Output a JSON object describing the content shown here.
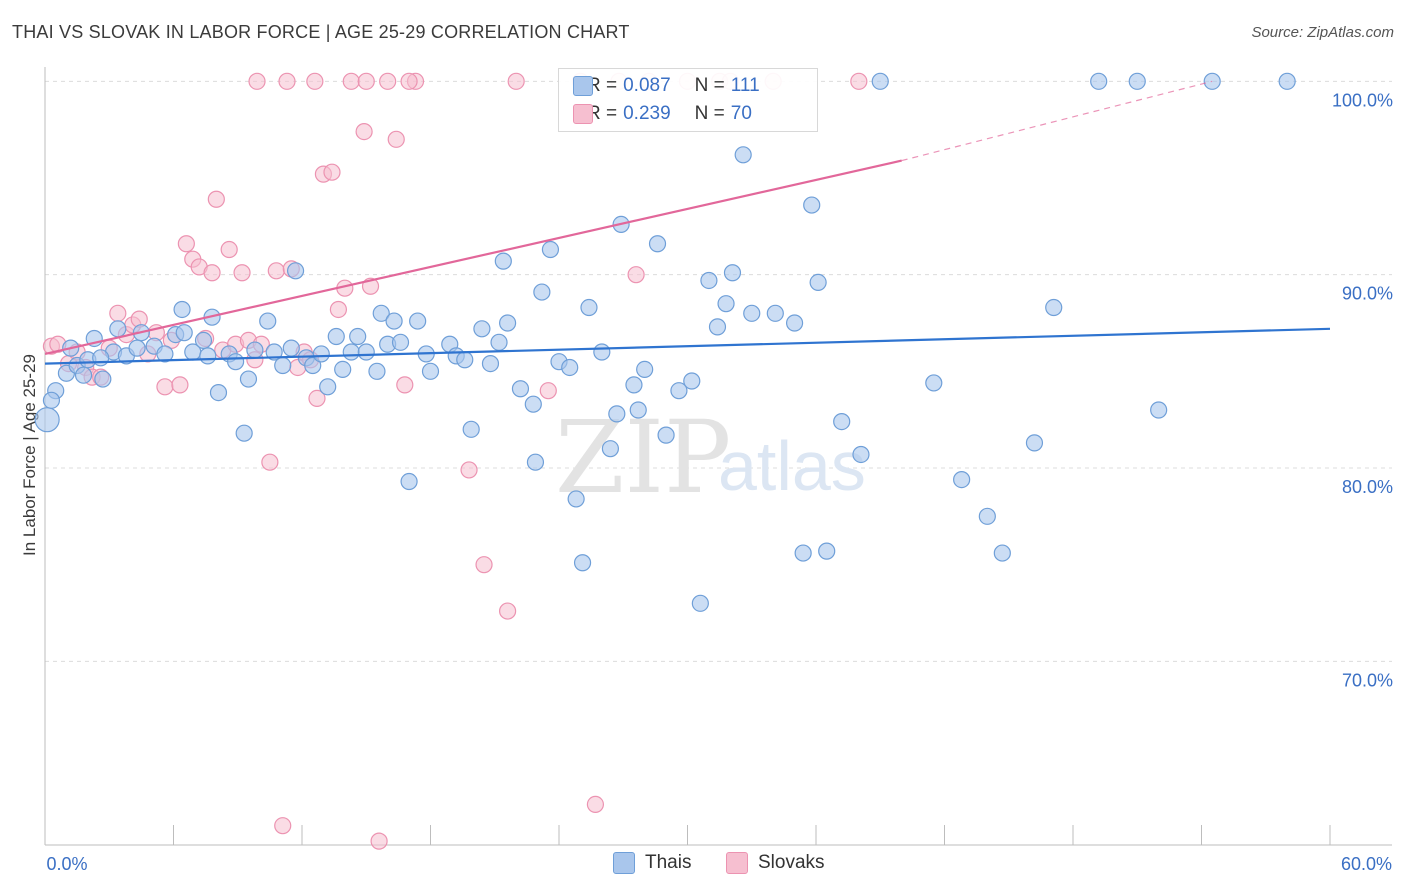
{
  "title": "THAI VS SLOVAK IN LABOR FORCE | AGE 25-29 CORRELATION CHART",
  "source": "Source: ZipAtlas.com",
  "colors": {
    "thai_fill": "#a9c6ec",
    "thai_stroke": "#6f9fd8",
    "thai_line": "#2f74d0",
    "slovak_fill": "#f6bfd0",
    "slovak_stroke": "#ec93b1",
    "slovak_line": "#e2679a",
    "tick_text": "#3a6fc4",
    "grid": "#dcdcdc"
  },
  "legend": {
    "thai": {
      "r_label": "R =",
      "r_value": "0.087",
      "n_label": "N =",
      "n_value": "111"
    },
    "slovak": {
      "r_label": "R =",
      "r_value": "0.239",
      "n_label": "N =",
      "n_value": "70"
    }
  },
  "bottom_legend": {
    "thai": "Thais",
    "slovak": "Slovaks"
  },
  "watermark": {
    "zip": "ZIP",
    "atlas": "atlas"
  },
  "chart_data": {
    "type": "scatter",
    "xlabel": "",
    "ylabel": "In Labor Force | Age 25-29",
    "xlim": [
      0,
      60
    ],
    "ylim": [
      60.5,
      101.0
    ],
    "x_tick_labels": [
      {
        "value": 0,
        "label": "0.0%"
      },
      {
        "value": 60,
        "label": "60.0%"
      }
    ],
    "y_ticks": [
      {
        "value": 70,
        "label": "70.0%"
      },
      {
        "value": 80,
        "label": "80.0%"
      },
      {
        "value": 90,
        "label": "90.0%"
      },
      {
        "value": 100,
        "label": "100.0%"
      }
    ],
    "x_minor_ticks": [
      0,
      6,
      12,
      18,
      24,
      30,
      36,
      42,
      48,
      54,
      60
    ],
    "grid": true,
    "legend_position": "top-center",
    "series": [
      {
        "name": "Thais",
        "trend": {
          "x": [
            0,
            60
          ],
          "y": [
            85.4,
            87.2
          ],
          "style": "solid"
        },
        "points": [
          [
            0.1,
            82.5
          ],
          [
            0.5,
            84.0
          ],
          [
            1.0,
            84.9
          ],
          [
            1.2,
            86.2
          ],
          [
            1.5,
            85.3
          ],
          [
            2.0,
            85.6
          ],
          [
            2.3,
            86.7
          ],
          [
            2.7,
            84.6
          ],
          [
            3.2,
            86.0
          ],
          [
            3.4,
            87.2
          ],
          [
            3.8,
            85.8
          ],
          [
            4.3,
            86.2
          ],
          [
            4.5,
            87.0
          ],
          [
            5.1,
            86.3
          ],
          [
            5.6,
            85.9
          ],
          [
            6.1,
            86.9
          ],
          [
            6.4,
            88.2
          ],
          [
            6.5,
            87.0
          ],
          [
            6.9,
            86.0
          ],
          [
            7.4,
            86.6
          ],
          [
            7.6,
            85.8
          ],
          [
            7.8,
            87.8
          ],
          [
            8.1,
            83.9
          ],
          [
            8.6,
            85.9
          ],
          [
            8.9,
            85.5
          ],
          [
            9.3,
            81.8
          ],
          [
            9.5,
            84.6
          ],
          [
            9.8,
            86.1
          ],
          [
            10.4,
            87.6
          ],
          [
            10.7,
            86.0
          ],
          [
            11.1,
            85.3
          ],
          [
            11.5,
            86.2
          ],
          [
            11.7,
            90.2
          ],
          [
            12.2,
            85.7
          ],
          [
            12.5,
            85.3
          ],
          [
            12.9,
            85.9
          ],
          [
            13.2,
            84.2
          ],
          [
            13.6,
            86.8
          ],
          [
            13.9,
            85.1
          ],
          [
            14.3,
            86.0
          ],
          [
            14.6,
            86.8
          ],
          [
            15.0,
            86.0
          ],
          [
            15.5,
            85.0
          ],
          [
            15.7,
            88.0
          ],
          [
            16.0,
            86.4
          ],
          [
            16.3,
            87.6
          ],
          [
            16.6,
            86.5
          ],
          [
            17.0,
            79.3
          ],
          [
            17.4,
            87.6
          ],
          [
            17.8,
            85.9
          ],
          [
            18.0,
            85.0
          ],
          [
            18.9,
            86.4
          ],
          [
            19.2,
            85.8
          ],
          [
            19.6,
            85.6
          ],
          [
            19.9,
            82.0
          ],
          [
            20.4,
            87.2
          ],
          [
            20.8,
            85.4
          ],
          [
            21.2,
            86.5
          ],
          [
            21.4,
            90.7
          ],
          [
            21.6,
            87.5
          ],
          [
            22.2,
            84.1
          ],
          [
            22.8,
            83.3
          ],
          [
            22.9,
            80.3
          ],
          [
            23.2,
            89.1
          ],
          [
            23.6,
            91.3
          ],
          [
            24.0,
            85.5
          ],
          [
            24.5,
            85.2
          ],
          [
            24.8,
            78.4
          ],
          [
            25.1,
            75.1
          ],
          [
            25.4,
            88.3
          ],
          [
            26.0,
            86.0
          ],
          [
            26.4,
            81.0
          ],
          [
            26.7,
            82.8
          ],
          [
            26.9,
            92.6
          ],
          [
            27.5,
            84.3
          ],
          [
            27.7,
            83.0
          ],
          [
            28.0,
            85.1
          ],
          [
            28.6,
            91.6
          ],
          [
            29.0,
            81.7
          ],
          [
            29.6,
            84.0
          ],
          [
            30.2,
            84.5
          ],
          [
            30.6,
            73.0
          ],
          [
            31.0,
            89.7
          ],
          [
            31.4,
            87.3
          ],
          [
            31.8,
            88.5
          ],
          [
            32.1,
            90.1
          ],
          [
            32.6,
            96.2
          ],
          [
            33.0,
            88.0
          ],
          [
            34.1,
            88.0
          ],
          [
            35.0,
            87.5
          ],
          [
            35.4,
            75.6
          ],
          [
            35.8,
            93.6
          ],
          [
            36.1,
            89.6
          ],
          [
            36.5,
            75.7
          ],
          [
            37.2,
            82.4
          ],
          [
            38.1,
            80.7
          ],
          [
            39.0,
            100.0
          ],
          [
            41.5,
            84.4
          ],
          [
            42.8,
            79.4
          ],
          [
            44.0,
            77.5
          ],
          [
            44.7,
            75.6
          ],
          [
            46.2,
            81.3
          ],
          [
            47.1,
            88.3
          ],
          [
            49.2,
            100.0
          ],
          [
            51.0,
            100.0
          ],
          [
            52.0,
            83.0
          ],
          [
            54.5,
            100.0
          ],
          [
            58.0,
            100.0
          ],
          [
            0.3,
            83.5
          ],
          [
            1.8,
            84.8
          ],
          [
            2.6,
            85.7
          ]
        ]
      },
      {
        "name": "Slovaks",
        "trend": {
          "x": [
            0,
            40
          ],
          "y": [
            85.9,
            95.9
          ],
          "style": "solid",
          "extension": {
            "x": [
              40,
              54.5
            ],
            "y": [
              95.9,
              100.0
            ],
            "style": "dashed"
          }
        },
        "points": [
          [
            0.3,
            86.3
          ],
          [
            0.6,
            86.4
          ],
          [
            1.1,
            85.4
          ],
          [
            1.5,
            86.0
          ],
          [
            1.9,
            85.2
          ],
          [
            2.2,
            84.7
          ],
          [
            2.6,
            84.7
          ],
          [
            3.0,
            86.2
          ],
          [
            3.4,
            88.0
          ],
          [
            3.8,
            86.9
          ],
          [
            4.1,
            87.4
          ],
          [
            4.4,
            87.7
          ],
          [
            4.8,
            85.9
          ],
          [
            5.2,
            87.0
          ],
          [
            5.6,
            84.2
          ],
          [
            5.9,
            86.6
          ],
          [
            6.3,
            84.3
          ],
          [
            6.6,
            91.6
          ],
          [
            6.9,
            90.8
          ],
          [
            7.2,
            90.4
          ],
          [
            7.5,
            86.7
          ],
          [
            7.8,
            90.1
          ],
          [
            8.0,
            93.9
          ],
          [
            8.3,
            86.1
          ],
          [
            8.6,
            91.3
          ],
          [
            8.9,
            86.4
          ],
          [
            9.2,
            90.1
          ],
          [
            9.5,
            86.6
          ],
          [
            9.8,
            85.6
          ],
          [
            10.1,
            86.4
          ],
          [
            10.5,
            80.3
          ],
          [
            10.8,
            90.2
          ],
          [
            11.1,
            61.5
          ],
          [
            11.5,
            90.3
          ],
          [
            11.8,
            85.2
          ],
          [
            12.1,
            86.0
          ],
          [
            12.4,
            85.6
          ],
          [
            12.7,
            83.6
          ],
          [
            13.0,
            95.2
          ],
          [
            13.4,
            95.3
          ],
          [
            13.7,
            88.2
          ],
          [
            14.0,
            89.3
          ],
          [
            14.3,
            100.0
          ],
          [
            14.9,
            97.4
          ],
          [
            15.2,
            89.4
          ],
          [
            15.6,
            60.7
          ],
          [
            16.0,
            100.0
          ],
          [
            16.4,
            97.0
          ],
          [
            16.8,
            84.3
          ],
          [
            17.3,
            100.0
          ],
          [
            19.8,
            79.9
          ],
          [
            20.5,
            75.0
          ],
          [
            21.6,
            72.6
          ],
          [
            22.0,
            100.0
          ],
          [
            23.5,
            84.0
          ],
          [
            25.0,
            100.0
          ],
          [
            25.7,
            62.6
          ],
          [
            26.8,
            100.0
          ],
          [
            27.6,
            90.0
          ],
          [
            28.2,
            100.0
          ],
          [
            30.0,
            100.0
          ],
          [
            31.5,
            100.0
          ],
          [
            32.0,
            100.0
          ],
          [
            34.0,
            100.0
          ],
          [
            38.0,
            100.0
          ],
          [
            9.9,
            100.0
          ],
          [
            11.3,
            100.0
          ],
          [
            12.6,
            100.0
          ],
          [
            15.0,
            100.0
          ],
          [
            17.0,
            100.0
          ]
        ]
      }
    ]
  }
}
